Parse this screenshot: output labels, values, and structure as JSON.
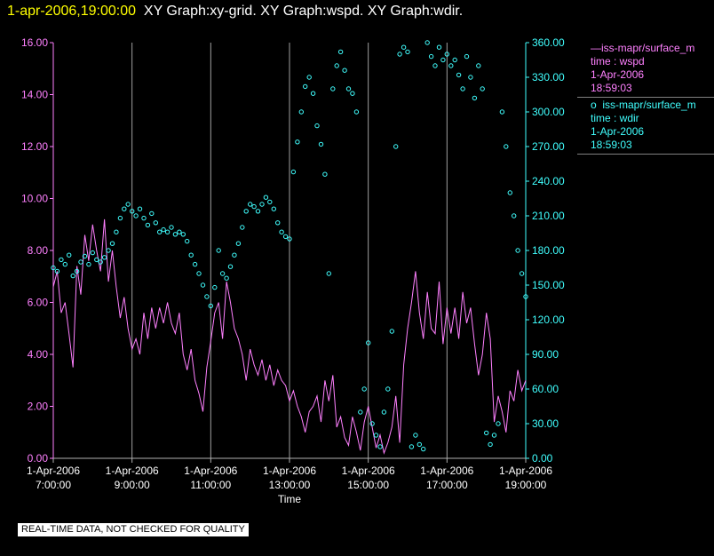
{
  "header": {
    "timestamp": "1-apr-2006,19:00:00",
    "graphs": "XY Graph:xy-grid.  XY Graph:wspd.  XY Graph:wdir."
  },
  "colors": {
    "wspd": "#ff80ff",
    "wdir": "#40ffff",
    "axis": "#b0b0b0",
    "grid": "#a0a0a0",
    "title_date": "#ffff00"
  },
  "legend": {
    "wspd": {
      "name": "iss-mapr/surface_m",
      "var": "time : wspd",
      "date": "1-Apr-2006",
      "time": "18:59:03"
    },
    "wdir": {
      "name": "iss-mapr/surface_m",
      "var": "time : wdir",
      "date": "1-Apr-2006",
      "time": "18:59:03"
    }
  },
  "quality_note": "REAL-TIME DATA, NOT CHECKED FOR QUALITY",
  "chart_data": {
    "type": "line",
    "title": "",
    "xlabel": "Time",
    "ylabel": "",
    "x_range_hours": [
      7.0,
      19.0
    ],
    "x_ticks": [
      {
        "hour": 7,
        "date": "1-Apr-2006",
        "time": "7:00:00"
      },
      {
        "hour": 9,
        "date": "1-Apr-2006",
        "time": "9:00:00"
      },
      {
        "hour": 11,
        "date": "1-Apr-2006",
        "time": "11:00:00"
      },
      {
        "hour": 13,
        "date": "1-Apr-2006",
        "time": "13:00:00"
      },
      {
        "hour": 15,
        "date": "1-Apr-2006",
        "time": "15:00:00"
      },
      {
        "hour": 17,
        "date": "1-Apr-2006",
        "time": "17:00:00"
      },
      {
        "hour": 19,
        "date": "1-Apr-2006",
        "time": "19:00:00"
      }
    ],
    "y_left": {
      "range": [
        0,
        16
      ],
      "ticks": [
        "0.00",
        "2.00",
        "4.00",
        "6.00",
        "8.00",
        "10.00",
        "12.00",
        "14.00",
        "16.00"
      ]
    },
    "y_right": {
      "range": [
        0,
        360
      ],
      "ticks": [
        "0.00",
        "30.00",
        "60.00",
        "90.00",
        "120.00",
        "150.00",
        "180.00",
        "210.00",
        "240.00",
        "270.00",
        "300.00",
        "330.00",
        "360.00"
      ]
    },
    "series": [
      {
        "name": "wspd",
        "style": "line",
        "axis": "left",
        "x": [
          7.0,
          7.1,
          7.2,
          7.3,
          7.4,
          7.5,
          7.6,
          7.7,
          7.8,
          7.9,
          8.0,
          8.1,
          8.2,
          8.3,
          8.4,
          8.5,
          8.6,
          8.7,
          8.8,
          8.9,
          9.0,
          9.1,
          9.2,
          9.3,
          9.4,
          9.5,
          9.6,
          9.7,
          9.8,
          9.9,
          10.0,
          10.1,
          10.2,
          10.3,
          10.4,
          10.5,
          10.6,
          10.7,
          10.8,
          10.9,
          11.0,
          11.1,
          11.2,
          11.3,
          11.4,
          11.5,
          11.6,
          11.7,
          11.8,
          11.9,
          12.0,
          12.1,
          12.2,
          12.3,
          12.4,
          12.5,
          12.6,
          12.7,
          12.8,
          12.9,
          13.0,
          13.1,
          13.2,
          13.3,
          13.4,
          13.5,
          13.6,
          13.7,
          13.8,
          13.9,
          14.0,
          14.1,
          14.2,
          14.3,
          14.4,
          14.5,
          14.6,
          14.7,
          14.8,
          14.9,
          15.0,
          15.1,
          15.2,
          15.3,
          15.4,
          15.5,
          15.6,
          15.7,
          15.8,
          15.9,
          16.0,
          16.1,
          16.2,
          16.3,
          16.4,
          16.5,
          16.6,
          16.7,
          16.8,
          16.9,
          17.0,
          17.1,
          17.2,
          17.3,
          17.4,
          17.5,
          17.6,
          17.7,
          17.8,
          17.9,
          18.0,
          18.1,
          18.2,
          18.3,
          18.4,
          18.5,
          18.6,
          18.7,
          18.8,
          18.9,
          19.0
        ],
        "values": [
          6.6,
          7.2,
          5.6,
          6.0,
          4.8,
          3.5,
          7.4,
          6.3,
          8.6,
          7.6,
          9.0,
          8.0,
          7.2,
          9.2,
          6.8,
          8.0,
          6.6,
          5.4,
          6.2,
          5.0,
          4.2,
          4.6,
          4.0,
          5.6,
          4.6,
          5.8,
          5.0,
          5.8,
          5.2,
          6.0,
          5.2,
          4.8,
          5.6,
          4.0,
          3.4,
          4.2,
          3.0,
          2.5,
          1.8,
          3.5,
          4.5,
          5.6,
          6.0,
          4.6,
          6.8,
          6.0,
          5.0,
          4.6,
          4.0,
          3.0,
          4.2,
          3.6,
          3.2,
          3.8,
          3.0,
          3.6,
          2.8,
          3.4,
          3.0,
          2.8,
          2.2,
          2.6,
          2.0,
          1.6,
          1.0,
          1.8,
          2.0,
          2.4,
          1.4,
          3.0,
          2.2,
          3.2,
          1.2,
          1.6,
          0.8,
          0.5,
          1.6,
          1.0,
          0.3,
          1.4,
          2.0,
          1.2,
          0.4,
          0.9,
          0.2,
          0.6,
          1.2,
          2.4,
          0.6,
          3.6,
          5.0,
          6.0,
          7.2,
          5.6,
          4.6,
          6.4,
          5.0,
          4.8,
          6.8,
          4.4,
          5.8,
          4.8,
          5.8,
          4.6,
          6.4,
          5.2,
          5.8,
          4.4,
          3.2,
          4.0,
          5.6,
          4.6,
          1.4,
          2.4,
          1.8,
          1.0,
          2.6,
          2.2,
          3.4,
          2.6,
          3.0
        ]
      },
      {
        "name": "wdir",
        "style": "scatter",
        "axis": "right",
        "x": [
          7.0,
          7.1,
          7.2,
          7.3,
          7.4,
          7.5,
          7.6,
          7.7,
          7.8,
          7.9,
          8.0,
          8.1,
          8.2,
          8.3,
          8.4,
          8.5,
          8.6,
          8.7,
          8.8,
          8.9,
          9.0,
          9.1,
          9.2,
          9.3,
          9.4,
          9.5,
          9.6,
          9.7,
          9.8,
          9.9,
          10.0,
          10.1,
          10.2,
          10.3,
          10.4,
          10.5,
          10.6,
          10.7,
          10.8,
          10.9,
          11.0,
          11.1,
          11.2,
          11.3,
          11.4,
          11.5,
          11.6,
          11.7,
          11.8,
          11.9,
          12.0,
          12.1,
          12.2,
          12.3,
          12.4,
          12.5,
          12.6,
          12.7,
          12.8,
          12.9,
          13.0,
          13.1,
          13.2,
          13.3,
          13.4,
          13.5,
          13.6,
          13.7,
          13.8,
          13.9,
          14.0,
          14.1,
          14.2,
          14.3,
          14.4,
          14.5,
          14.6,
          14.7,
          14.8,
          14.9,
          15.0,
          15.1,
          15.2,
          15.3,
          15.4,
          15.5,
          15.6,
          15.7,
          15.8,
          15.9,
          16.0,
          16.1,
          16.2,
          16.3,
          16.4,
          16.5,
          16.6,
          16.7,
          16.8,
          16.9,
          17.0,
          17.1,
          17.2,
          17.3,
          17.4,
          17.5,
          17.6,
          17.7,
          17.8,
          17.9,
          18.0,
          18.1,
          18.2,
          18.3,
          18.4,
          18.5,
          18.6,
          18.7,
          18.8,
          18.9,
          19.0
        ],
        "values": [
          165,
          162,
          172,
          168,
          176,
          158,
          162,
          170,
          175,
          168,
          178,
          172,
          170,
          174,
          180,
          186,
          196,
          208,
          216,
          220,
          214,
          210,
          216,
          208,
          202,
          212,
          204,
          196,
          198,
          196,
          200,
          194,
          196,
          194,
          188,
          176,
          168,
          160,
          150,
          140,
          132,
          148,
          180,
          160,
          156,
          166,
          176,
          186,
          200,
          214,
          220,
          218,
          214,
          220,
          226,
          222,
          216,
          204,
          196,
          192,
          190,
          248,
          274,
          300,
          322,
          330,
          316,
          288,
          272,
          246,
          160,
          320,
          340,
          352,
          336,
          320,
          316,
          300,
          40,
          60,
          100,
          30,
          20,
          10,
          40,
          60,
          110,
          270,
          350,
          356,
          352,
          10,
          20,
          12,
          8,
          360,
          348,
          340,
          356,
          345,
          350,
          340,
          345,
          332,
          320,
          348,
          330,
          312,
          340,
          320,
          22,
          12,
          20,
          30,
          300,
          270,
          230,
          210,
          180,
          160,
          140
        ]
      }
    ]
  }
}
